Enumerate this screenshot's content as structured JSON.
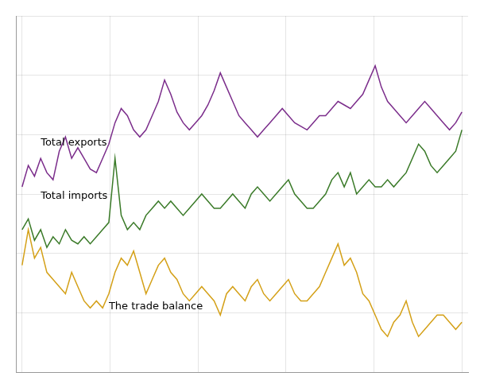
{
  "chart_data": {
    "type": "line",
    "x": [
      0,
      1,
      2,
      3,
      4,
      5,
      6,
      7,
      8,
      9,
      10,
      11,
      12,
      13,
      14,
      15,
      16,
      17,
      18,
      19,
      20,
      21,
      22,
      23,
      24,
      25,
      26,
      27,
      28,
      29,
      30,
      31,
      32,
      33,
      34,
      35,
      36,
      37,
      38,
      39,
      40,
      41,
      42,
      43,
      44,
      45,
      46,
      47,
      48,
      49,
      50,
      51,
      52,
      53,
      54,
      55,
      56,
      57,
      58,
      59,
      60,
      61,
      62,
      63,
      64,
      65,
      66,
      67,
      68,
      69,
      70,
      71
    ],
    "series": [
      {
        "color": "#7b2d8b",
        "values": [
          52,
          58,
          55,
          60,
          56,
          54,
          62,
          66,
          60,
          63,
          60,
          57,
          56,
          60,
          64,
          70,
          74,
          72,
          68,
          66,
          68,
          72,
          76,
          82,
          78,
          73,
          70,
          68,
          70,
          72,
          75,
          79,
          84,
          80,
          76,
          72,
          70,
          68,
          66,
          68,
          70,
          72,
          74,
          72,
          70,
          69,
          68,
          70,
          72,
          72,
          74,
          76,
          75,
          74,
          76,
          78,
          82,
          86,
          80,
          76,
          74,
          72,
          70,
          72,
          74,
          76,
          74,
          72,
          70,
          68,
          70,
          73
        ]
      },
      {
        "color": "#3a7a28",
        "values": [
          40,
          43,
          37,
          40,
          35,
          38,
          36,
          40,
          37,
          36,
          38,
          36,
          38,
          40,
          42,
          60,
          44,
          40,
          42,
          40,
          44,
          46,
          48,
          46,
          48,
          46,
          44,
          46,
          48,
          50,
          48,
          46,
          46,
          48,
          50,
          48,
          46,
          50,
          52,
          50,
          48,
          50,
          52,
          54,
          50,
          48,
          46,
          46,
          48,
          50,
          54,
          56,
          52,
          56,
          50,
          52,
          54,
          52,
          52,
          54,
          52,
          54,
          56,
          60,
          64,
          62,
          58,
          56,
          58,
          60,
          62,
          68
        ]
      },
      {
        "color": "#d4a017",
        "values": [
          30,
          40,
          32,
          35,
          28,
          26,
          24,
          22,
          28,
          24,
          20,
          18,
          20,
          18,
          22,
          28,
          32,
          30,
          34,
          28,
          22,
          26,
          30,
          32,
          28,
          26,
          22,
          20,
          22,
          24,
          22,
          20,
          16,
          22,
          24,
          22,
          20,
          24,
          26,
          22,
          20,
          22,
          24,
          26,
          22,
          20,
          20,
          22,
          24,
          28,
          32,
          36,
          30,
          32,
          28,
          22,
          20,
          16,
          12,
          10,
          14,
          16,
          20,
          14,
          10,
          12,
          14,
          16,
          16,
          14,
          12,
          14
        ]
      }
    ],
    "annotations": [
      {
        "text": "Total exports",
        "x": 3,
        "y": 63
      },
      {
        "text": "Total imports",
        "x": 3,
        "y": 48
      },
      {
        "text": "The trade balance",
        "x": 14,
        "y": 17
      }
    ],
    "xlim": [
      -1,
      72
    ],
    "xticks": [
      0,
      14.2,
      28.4,
      42.6,
      56.8,
      71
    ],
    "ylim": [
      0,
      100
    ],
    "yticks": [
      0,
      16.666666666666668,
      33.333333333333336,
      50,
      66.66666666666667,
      83.33333333333334,
      100
    ],
    "grid": true,
    "tick_labels": false
  }
}
